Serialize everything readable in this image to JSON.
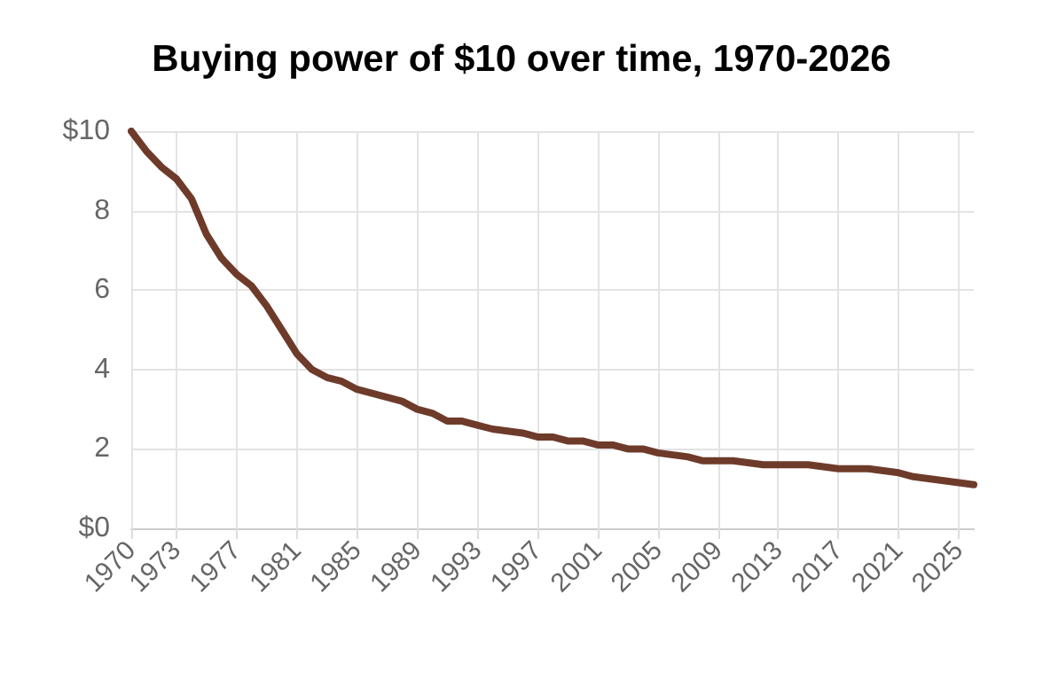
{
  "chart_data": {
    "type": "line",
    "title": "Buying power of $10 over time, 1970-2026",
    "x": [
      1970,
      1971,
      1972,
      1973,
      1974,
      1975,
      1976,
      1977,
      1978,
      1979,
      1980,
      1981,
      1982,
      1983,
      1984,
      1985,
      1986,
      1987,
      1988,
      1989,
      1990,
      1991,
      1992,
      1993,
      1994,
      1995,
      1996,
      1997,
      1998,
      1999,
      2000,
      2001,
      2002,
      2003,
      2004,
      2005,
      2006,
      2007,
      2008,
      2009,
      2010,
      2011,
      2012,
      2013,
      2014,
      2015,
      2016,
      2017,
      2018,
      2019,
      2020,
      2021,
      2022,
      2023,
      2024,
      2025,
      2026
    ],
    "series": [
      {
        "color": "#6e3b2b",
        "values": [
          10,
          9.5,
          9.1,
          8.8,
          8.3,
          7.4,
          6.8,
          6.4,
          6.1,
          5.6,
          5.0,
          4.4,
          4.0,
          3.8,
          3.7,
          3.5,
          3.4,
          3.3,
          3.2,
          3.0,
          2.9,
          2.7,
          2.7,
          2.6,
          2.5,
          2.45,
          2.4,
          2.3,
          2.3,
          2.2,
          2.2,
          2.1,
          2.1,
          2.0,
          2.0,
          1.9,
          1.85,
          1.8,
          1.7,
          1.7,
          1.7,
          1.65,
          1.6,
          1.6,
          1.6,
          1.6,
          1.55,
          1.5,
          1.5,
          1.5,
          1.45,
          1.4,
          1.3,
          1.25,
          1.2,
          1.15,
          1.1
        ]
      }
    ],
    "xlim": [
      1970,
      2026
    ],
    "xticks": [
      1970,
      1973,
      1977,
      1981,
      1985,
      1989,
      1993,
      1997,
      2001,
      2005,
      2009,
      2013,
      2017,
      2021,
      2025
    ],
    "ylim": [
      0,
      10
    ],
    "yticks": [
      {
        "value": 0,
        "label": "$0"
      },
      2,
      4,
      6,
      8,
      {
        "value": 10,
        "label": "$10"
      }
    ],
    "grid": true,
    "marker": "none",
    "line_style": "solid"
  }
}
